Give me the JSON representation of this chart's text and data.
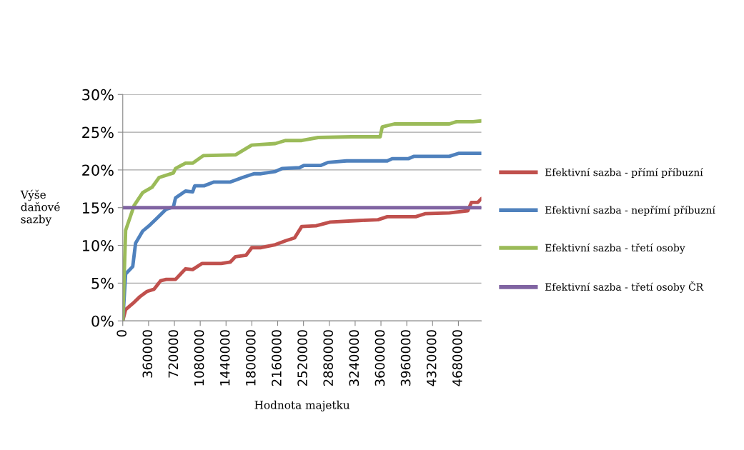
{
  "chart_data": {
    "type": "line",
    "xlabel": "Hodnota majetku",
    "ylabel": "Výše\ndaňové\nsazby",
    "xlim": [
      0,
      5000000
    ],
    "xticks": [
      0,
      360000,
      720000,
      1080000,
      1440000,
      1800000,
      2160000,
      2520000,
      2880000,
      3240000,
      3600000,
      3960000,
      4320000,
      4680000
    ],
    "ylim": [
      0,
      30
    ],
    "yticks": [
      {
        "value": 0,
        "label": "0%"
      },
      {
        "value": 5,
        "label": "5%"
      },
      {
        "value": 10,
        "label": "10%"
      },
      {
        "value": 15,
        "label": "15%"
      },
      {
        "value": 20,
        "label": "20%"
      },
      {
        "value": 25,
        "label": "25%"
      },
      {
        "value": 30,
        "label": "30%"
      }
    ],
    "grid": "y",
    "legend": "right",
    "marker": "none",
    "line_style": "solid",
    "series": [
      {
        "name": "Efektivní sazba - přímí příbuzní",
        "color": "#c0504d",
        "x": [
          0,
          40000,
          139000,
          239000,
          338000,
          437000,
          527000,
          606000,
          736000,
          875000,
          974000,
          1103000,
          1372000,
          1501000,
          1571000,
          1720000,
          1799000,
          1928000,
          2127000,
          2266000,
          2396000,
          2495000,
          2694000,
          2893000,
          3290000,
          3559000,
          3688000,
          4085000,
          4215000,
          4553000,
          4811000,
          4861000,
          4950000,
          5000000
        ],
        "values": [
          0,
          1.5,
          2.3,
          3.2,
          3.9,
          4.2,
          5.3,
          5.5,
          5.5,
          6.9,
          6.8,
          7.6,
          7.6,
          7.8,
          8.5,
          8.7,
          9.7,
          9.7,
          10.1,
          10.6,
          11.0,
          12.5,
          12.6,
          13.1,
          13.3,
          13.4,
          13.8,
          13.8,
          14.2,
          14.3,
          14.6,
          15.7,
          15.7,
          16.2
        ]
      },
      {
        "name": "Efektivní sazba - nepřímí příbuzní",
        "color": "#4f81bd",
        "x": [
          0,
          40000,
          139000,
          179000,
          278000,
          378000,
          477000,
          606000,
          706000,
          736000,
          875000,
          974000,
          1004000,
          1133000,
          1272000,
          1501000,
          1670000,
          1829000,
          1928000,
          2127000,
          2227000,
          2465000,
          2525000,
          2763000,
          2863000,
          3121000,
          3688000,
          3757000,
          3986000,
          4056000,
          4553000,
          4682000,
          5000000
        ],
        "values": [
          0,
          6.2,
          7.2,
          10.3,
          11.9,
          12.7,
          13.6,
          14.8,
          15.1,
          16.3,
          17.2,
          17.1,
          17.9,
          17.9,
          18.4,
          18.4,
          19.0,
          19.5,
          19.5,
          19.8,
          20.2,
          20.3,
          20.6,
          20.6,
          21.0,
          21.2,
          21.2,
          21.5,
          21.5,
          21.8,
          21.8,
          22.2,
          22.2
        ]
      },
      {
        "name": "Efektivní sazba - třetí osoby",
        "color": "#9bbb59",
        "x": [
          0,
          40000,
          159000,
          278000,
          408000,
          507000,
          706000,
          736000,
          875000,
          974000,
          1123000,
          1571000,
          1799000,
          2127000,
          2266000,
          2495000,
          2724000,
          3191000,
          3588000,
          3618000,
          3787000,
          4553000,
          4652000,
          4881000,
          5000000
        ],
        "values": [
          0,
          12.0,
          15.3,
          17.0,
          17.7,
          19.0,
          19.6,
          20.2,
          20.9,
          20.9,
          21.9,
          22.0,
          23.3,
          23.5,
          23.9,
          23.9,
          24.3,
          24.4,
          24.4,
          25.7,
          26.1,
          26.1,
          26.4,
          26.4,
          26.5
        ]
      },
      {
        "name": "Efektivní sazba - třetí osoby ČR",
        "color": "#8064a2",
        "x": [
          0,
          5000000
        ],
        "values": [
          15,
          15
        ]
      }
    ]
  }
}
